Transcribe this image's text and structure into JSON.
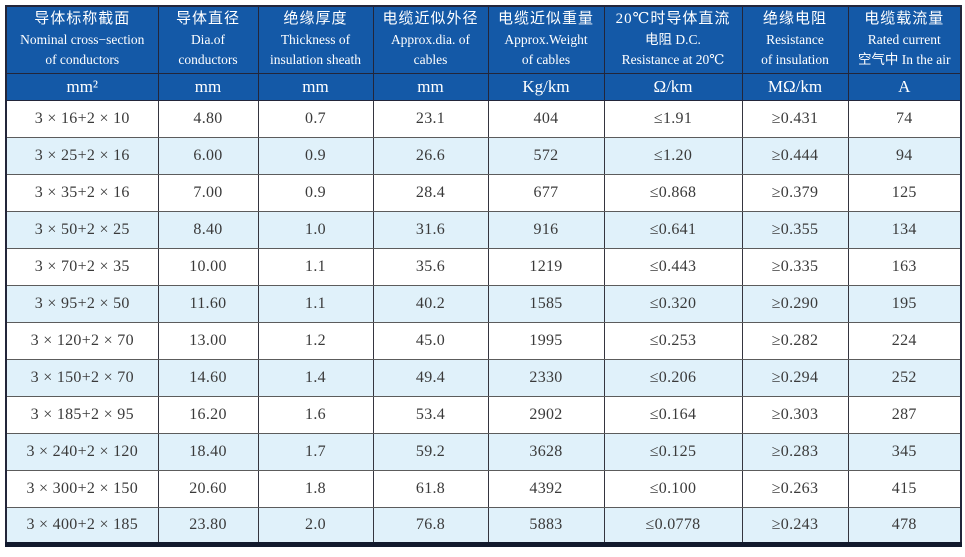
{
  "colors": {
    "header_bg": "#1459a7",
    "header_text": "#ffffff",
    "row_bg": "#ffffff",
    "row_alt_bg": "#e0f1fa",
    "body_text": "#3a3a3a",
    "grid_line": "#5c5c5c",
    "outer_border": "#23263a"
  },
  "table": {
    "header": [
      {
        "zh": "导体标称截面",
        "en1": "Nominal cross−section",
        "en2": "of conductors",
        "unit": "mm²"
      },
      {
        "zh": "导体直径",
        "en1": "Dia.of",
        "en2": "conductors",
        "unit": "mm"
      },
      {
        "zh": "绝缘厚度",
        "en1": "Thickness of",
        "en2": "insulation sheath",
        "unit": "mm"
      },
      {
        "zh": "电缆近似外径",
        "en1": "Approx.dia. of",
        "en2": "cables",
        "unit": "mm"
      },
      {
        "zh": "电缆近似重量",
        "en1": "Approx.Weight",
        "en2": "of cables",
        "unit": "Kg/km"
      },
      {
        "zh": "20℃时导体直流",
        "en1": "电阻 D.C.",
        "en2": "Resistance at 20℃",
        "unit": "Ω/km"
      },
      {
        "zh": "绝缘电阻",
        "en1": "Resistance",
        "en2": "of insulation",
        "unit": "MΩ/km"
      },
      {
        "zh": "电缆载流量",
        "en1": "Rated current",
        "en2": "空气中 In the air",
        "unit": "A"
      }
    ],
    "rows": [
      [
        "3 × 16+2 × 10",
        "4.80",
        "0.7",
        "23.1",
        "404",
        "≤1.91",
        "≥0.431",
        "74"
      ],
      [
        "3 × 25+2 × 16",
        "6.00",
        "0.9",
        "26.6",
        "572",
        "≤1.20",
        "≥0.444",
        "94"
      ],
      [
        "3 × 35+2 × 16",
        "7.00",
        "0.9",
        "28.4",
        "677",
        "≤0.868",
        "≥0.379",
        "125"
      ],
      [
        "3 × 50+2 × 25",
        "8.40",
        "1.0",
        "31.6",
        "916",
        "≤0.641",
        "≥0.355",
        "134"
      ],
      [
        "3 × 70+2 × 35",
        "10.00",
        "1.1",
        "35.6",
        "1219",
        "≤0.443",
        "≥0.335",
        "163"
      ],
      [
        "3 × 95+2 × 50",
        "11.60",
        "1.1",
        "40.2",
        "1585",
        "≤0.320",
        "≥0.290",
        "195"
      ],
      [
        "3 × 120+2 × 70",
        "13.00",
        "1.2",
        "45.0",
        "1995",
        "≤0.253",
        "≥0.282",
        "224"
      ],
      [
        "3 × 150+2 × 70",
        "14.60",
        "1.4",
        "49.4",
        "2330",
        "≤0.206",
        "≥0.294",
        "252"
      ],
      [
        "3 × 185+2 × 95",
        "16.20",
        "1.6",
        "53.4",
        "2902",
        "≤0.164",
        "≥0.303",
        "287"
      ],
      [
        "3 × 240+2 × 120",
        "18.40",
        "1.7",
        "59.2",
        "3628",
        "≤0.125",
        "≥0.283",
        "345"
      ],
      [
        "3 × 300+2 × 150",
        "20.60",
        "1.8",
        "61.8",
        "4392",
        "≤0.100",
        "≥0.263",
        "415"
      ],
      [
        "3 × 400+2 × 185",
        "23.80",
        "2.0",
        "76.8",
        "5883",
        "≤0.0778",
        "≥0.243",
        "478"
      ]
    ]
  }
}
